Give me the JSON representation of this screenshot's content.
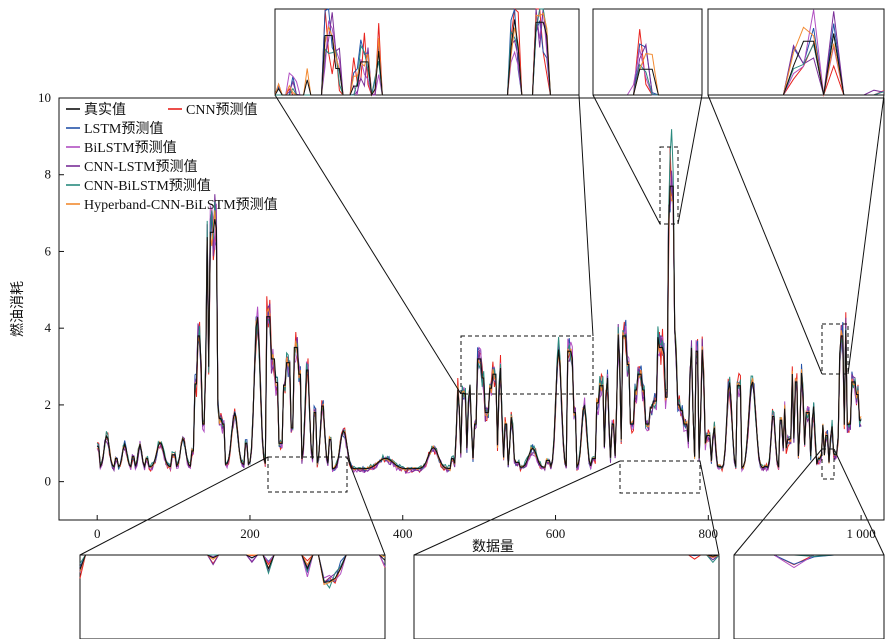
{
  "chart_data": {
    "type": "line",
    "title": "",
    "xlabel": "数据量",
    "ylabel": "燃油消耗",
    "xlim": [
      -50,
      1030
    ],
    "ylim": [
      -1,
      10
    ],
    "x_ticks": [
      {
        "v": 0,
        "label": "0"
      },
      {
        "v": 200,
        "label": "200"
      },
      {
        "v": 400,
        "label": "400"
      },
      {
        "v": 600,
        "label": "600"
      },
      {
        "v": 800,
        "label": "800"
      },
      {
        "v": 1000,
        "label": "1 000"
      }
    ],
    "y_ticks": [
      {
        "v": 0,
        "label": "0"
      },
      {
        "v": 2,
        "label": "2"
      },
      {
        "v": 4,
        "label": "4"
      },
      {
        "v": 6,
        "label": "6"
      },
      {
        "v": 8,
        "label": "8"
      },
      {
        "v": 10,
        "label": "10"
      }
    ],
    "legend_position": "top-left",
    "peaks_x": [
      0,
      25,
      47,
      65,
      100,
      125,
      133,
      138,
      150,
      153,
      155,
      157,
      165,
      195,
      224,
      230,
      240,
      250,
      255,
      260,
      265,
      285,
      305,
      340,
      415,
      465,
      480,
      495,
      500,
      510,
      520,
      535,
      550,
      590,
      618,
      625,
      650,
      660,
      675,
      690,
      700,
      710,
      720,
      730,
      738,
      745,
      752,
      755,
      760,
      770,
      785,
      800,
      815,
      840,
      875,
      895,
      905,
      915,
      930,
      945,
      955,
      968,
      975,
      985,
      990,
      1000
    ],
    "true_values": [
      0.9,
      0.6,
      0.65,
      0.6,
      0.7,
      0.8,
      3.8,
      1.5,
      6.5,
      4.0,
      6.6,
      2.0,
      1.5,
      1.0,
      4.3,
      3.2,
      1.0,
      3.1,
      1.4,
      3.5,
      2.8,
      1.8,
      1.1,
      0.25,
      0.3,
      0.6,
      2.3,
      1.5,
      3.2,
      1.8,
      2.8,
      1.5,
      0.5,
      0.55,
      3.4,
      1.8,
      0.6,
      2.5,
      1.5,
      3.8,
      1.5,
      2.8,
      1.5,
      2.1,
      3.5,
      2.2,
      7.7,
      4.0,
      2.0,
      1.5,
      3.4,
      1.2,
      0.4,
      2.5,
      0.4,
      1.6,
      1.1,
      2.6,
      1.8,
      0.6,
      1.2,
      0.7,
      3.8,
      1.5,
      2.6,
      1.6
    ],
    "series": [
      {
        "name": "真实值",
        "color": "#111111",
        "offset": 0,
        "noise": 0
      },
      {
        "name": "CNN预测值",
        "color": "#e8231e",
        "offset": -0.1,
        "noise": 0.18
      },
      {
        "name": "LSTM预测值",
        "color": "#2453a8",
        "offset": -0.05,
        "noise": 0.14
      },
      {
        "name": "BiLSTM预测值",
        "color": "#b14fc2",
        "offset": -0.15,
        "noise": 0.16
      },
      {
        "name": "CNN-LSTM预测值",
        "color": "#7a2f98",
        "offset": -0.12,
        "noise": 0.13
      },
      {
        "name": "CNN-BiLSTM预测值",
        "color": "#2a8a7e",
        "offset": 0.08,
        "noise": 0.12
      },
      {
        "name": "Hyperband-CNN-BiLSTM预测值",
        "color": "#f28a30",
        "offset": 0,
        "noise": 0.07
      }
    ]
  }
}
